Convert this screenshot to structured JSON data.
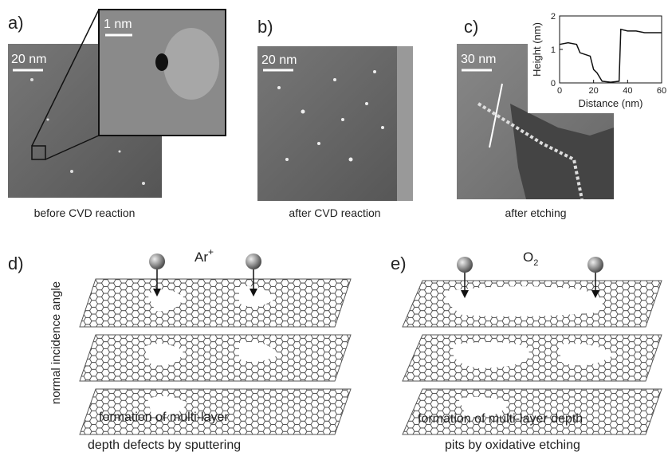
{
  "panels": {
    "a": {
      "label": "a)",
      "scale_bar": "20 nm",
      "inset_scale_bar": "1 nm",
      "caption": "before CVD reaction"
    },
    "b": {
      "label": "b)",
      "scale_bar": "20 nm",
      "caption": "after CVD reaction"
    },
    "c": {
      "label": "c)",
      "scale_bar": "30 nm",
      "caption": "after etching",
      "profile": {
        "type": "line",
        "x_label": "Distance (nm)",
        "y_label": "Height (nm)",
        "x": [
          0,
          5,
          10,
          12,
          15,
          18,
          20,
          22,
          25,
          30,
          35,
          36,
          40,
          45,
          50,
          55,
          60
        ],
        "values": [
          1.15,
          1.2,
          1.15,
          0.9,
          0.85,
          0.8,
          0.4,
          0.3,
          0.05,
          0.02,
          0.05,
          1.6,
          1.55,
          1.55,
          1.5,
          1.5,
          1.5
        ],
        "xlim": [
          0,
          60
        ],
        "ylim": [
          0,
          2
        ],
        "xticks": [
          0,
          20,
          40,
          60
        ],
        "yticks": [
          0,
          1,
          2
        ],
        "color": "#111111"
      }
    },
    "d": {
      "label": "d)",
      "ion": "Ar",
      "charge": "+",
      "axis_note": "normal incidence angle",
      "caption_line1": "formation of multi-layer",
      "caption_line2": "depth defects by sputtering"
    },
    "e": {
      "label": "e)",
      "gas": "O",
      "gas_subscript": "2",
      "caption_line1": "formation of multi-layer depth",
      "caption_line2": "pits by oxidative etching"
    }
  }
}
